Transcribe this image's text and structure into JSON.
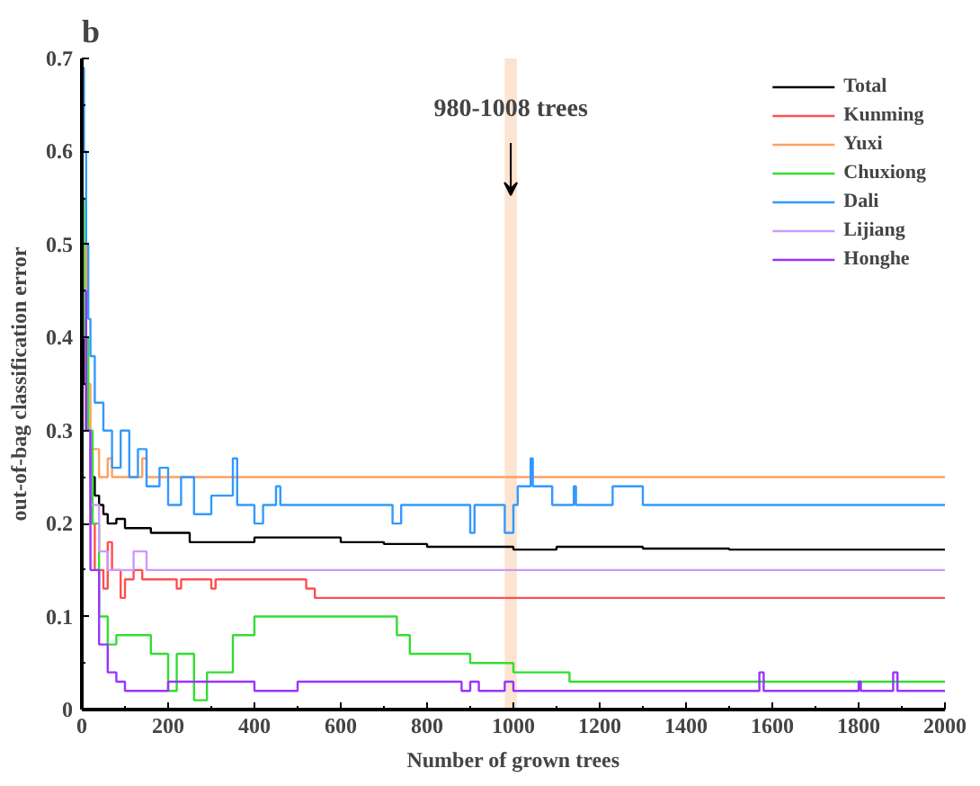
{
  "chart_data": {
    "type": "step",
    "title": "b",
    "xlabel": "Number of grown trees",
    "ylabel": "out-of-bag classification error",
    "xlim": [
      0,
      2000
    ],
    "ylim": [
      0,
      0.7
    ],
    "xticks": [
      0,
      200,
      400,
      600,
      800,
      1000,
      1200,
      1400,
      1600,
      1800,
      2000
    ],
    "yticks": [
      0.0,
      0.1,
      0.2,
      0.3,
      0.4,
      0.5,
      0.6,
      0.7
    ],
    "grid": false,
    "legend": "top right",
    "line_style": "solid",
    "marker": "none",
    "bands": [
      {
        "axis": "x",
        "from": 980,
        "to": 1008,
        "label": "980-1008 trees",
        "color": "#fce4d0"
      }
    ],
    "series": [
      {
        "name": "Total",
        "color": "#000000",
        "x": [
          1,
          5,
          10,
          20,
          30,
          40,
          50,
          60,
          80,
          100,
          130,
          160,
          200,
          250,
          300,
          400,
          500,
          600,
          700,
          800,
          900,
          1000,
          1100,
          1200,
          1300,
          1500,
          1600,
          2000
        ],
        "values": [
          0.42,
          0.35,
          0.3,
          0.25,
          0.23,
          0.22,
          0.21,
          0.2,
          0.205,
          0.195,
          0.195,
          0.19,
          0.19,
          0.18,
          0.18,
          0.185,
          0.185,
          0.18,
          0.178,
          0.175,
          0.175,
          0.172,
          0.175,
          0.175,
          0.173,
          0.172,
          0.172,
          0.172
        ]
      },
      {
        "name": "Kunming",
        "color": "#ff5050",
        "x": [
          1,
          10,
          20,
          30,
          50,
          60,
          70,
          90,
          100,
          120,
          140,
          220,
          230,
          300,
          310,
          520,
          540,
          2000
        ],
        "values": [
          0.5,
          0.3,
          0.2,
          0.15,
          0.13,
          0.18,
          0.15,
          0.12,
          0.14,
          0.15,
          0.14,
          0.13,
          0.14,
          0.13,
          0.14,
          0.13,
          0.12,
          0.12
        ]
      },
      {
        "name": "Yuxi",
        "color": "#ffa060",
        "x": [
          1,
          10,
          20,
          40,
          60,
          70,
          140,
          150,
          210,
          2000
        ],
        "values": [
          0.5,
          0.35,
          0.28,
          0.25,
          0.27,
          0.25,
          0.27,
          0.25,
          0.25,
          0.25
        ]
      },
      {
        "name": "Chuxiong",
        "color": "#33dd33",
        "x": [
          1,
          5,
          15,
          25,
          40,
          60,
          80,
          160,
          200,
          220,
          260,
          290,
          350,
          400,
          470,
          730,
          760,
          900,
          1000,
          1130,
          2000
        ],
        "values": [
          0.55,
          0.4,
          0.3,
          0.2,
          0.1,
          0.07,
          0.08,
          0.06,
          0.02,
          0.06,
          0.01,
          0.04,
          0.08,
          0.1,
          0.1,
          0.08,
          0.06,
          0.05,
          0.04,
          0.03,
          0.03
        ]
      },
      {
        "name": "Dali",
        "color": "#3399ff",
        "x": [
          1,
          5,
          10,
          15,
          20,
          30,
          50,
          70,
          90,
          110,
          130,
          150,
          180,
          200,
          230,
          260,
          300,
          350,
          360,
          400,
          420,
          450,
          460,
          720,
          740,
          900,
          910,
          980,
          1000,
          1010,
          1040,
          1045,
          1090,
          1140,
          1145,
          1230,
          1300,
          2000
        ],
        "values": [
          0.69,
          0.6,
          0.5,
          0.42,
          0.38,
          0.33,
          0.3,
          0.26,
          0.3,
          0.25,
          0.28,
          0.24,
          0.26,
          0.22,
          0.25,
          0.21,
          0.23,
          0.27,
          0.22,
          0.2,
          0.22,
          0.24,
          0.22,
          0.2,
          0.22,
          0.19,
          0.22,
          0.19,
          0.22,
          0.24,
          0.27,
          0.24,
          0.22,
          0.24,
          0.22,
          0.24,
          0.22,
          0.22
        ]
      },
      {
        "name": "Lijiang",
        "color": "#cc99ff",
        "x": [
          1,
          10,
          20,
          40,
          60,
          120,
          150,
          2000
        ],
        "values": [
          0.4,
          0.3,
          0.22,
          0.17,
          0.15,
          0.17,
          0.15,
          0.15
        ]
      },
      {
        "name": "Honghe",
        "color": "#9933ff",
        "x": [
          1,
          10,
          20,
          40,
          60,
          80,
          100,
          200,
          400,
          500,
          880,
          900,
          920,
          980,
          1000,
          1570,
          1580,
          1800,
          1805,
          1880,
          1890,
          2000
        ],
        "values": [
          0.45,
          0.3,
          0.15,
          0.07,
          0.04,
          0.03,
          0.02,
          0.03,
          0.02,
          0.03,
          0.02,
          0.03,
          0.02,
          0.03,
          0.02,
          0.04,
          0.02,
          0.03,
          0.02,
          0.04,
          0.02,
          0.02
        ]
      }
    ]
  }
}
